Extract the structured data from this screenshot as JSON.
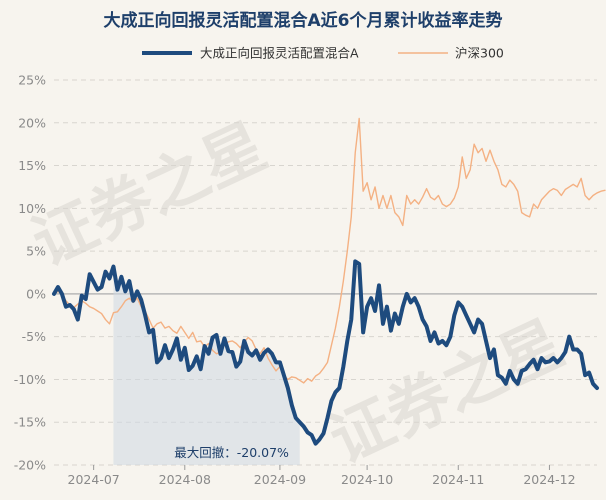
{
  "chart_data": {
    "type": "line",
    "title": "大成正向回报灵活配置混合A近6个月累计收益率走势",
    "xlabel": "",
    "ylabel": "",
    "ylim": [
      -20,
      25
    ],
    "yticks": [
      25,
      20,
      15,
      10,
      5,
      0,
      -5,
      -10,
      -15,
      -20
    ],
    "ytick_labels": [
      "25%",
      "20%",
      "15%",
      "10%",
      "5%",
      "0%",
      "-5%",
      "-10%",
      "-15%",
      "-20%"
    ],
    "xticks": [
      "2024-07",
      "2024-08",
      "2024-09",
      "2024-10",
      "2024-11",
      "2024-12"
    ],
    "grid": true,
    "legend_position": "top-center",
    "watermark": "证券之星",
    "annotation": {
      "label": "最大回撤：-20.07%",
      "start_index": 15,
      "end_index": 62
    },
    "series": [
      {
        "name": "大成正向回报灵活配置混合A",
        "color": "#1e4b7e",
        "values": [
          0,
          0.8,
          0,
          -1.5,
          -1.3,
          -1.8,
          -3,
          -0.2,
          -0.6,
          2.3,
          1.4,
          0.5,
          0.8,
          2.6,
          1.8,
          3.2,
          0.5,
          2,
          0.3,
          1.5,
          -0.8,
          0.3,
          -0.7,
          -2.5,
          -4.5,
          -4.2,
          -8,
          -7.5,
          -6,
          -7.5,
          -6.5,
          -5.2,
          -7.7,
          -6.3,
          -8.9,
          -8.4,
          -7.3,
          -8.8,
          -6.1,
          -7,
          -5.1,
          -4.8,
          -7,
          -5.2,
          -6.7,
          -6.8,
          -8.5,
          -7.9,
          -5.5,
          -6.8,
          -7.2,
          -6.6,
          -7.7,
          -6.9,
          -6.5,
          -7,
          -8,
          -8,
          -9.5,
          -11,
          -13,
          -14.5,
          -15,
          -15.5,
          -16.2,
          -16.5,
          -17.5,
          -17,
          -16.3,
          -14.5,
          -12.5,
          -11.5,
          -11,
          -8.5,
          -5.5,
          -3,
          3.8,
          3.5,
          -4.5,
          -1.5,
          -0.5,
          -2,
          1,
          -3.5,
          -1.5,
          -4.3,
          -2.3,
          -3.5,
          -1.5,
          0,
          -1,
          -0.5,
          -1.5,
          -3,
          -3.8,
          -5.5,
          -4.5,
          -5.8,
          -5.5,
          -6,
          -5,
          -2.5,
          -1,
          -1.5,
          -2.5,
          -3.5,
          -4.5,
          -3,
          -3.5,
          -5.5,
          -7.5,
          -6.5,
          -9.5,
          -9.8,
          -10.5,
          -9,
          -10,
          -10.5,
          -9,
          -8.8,
          -8.2,
          -7.7,
          -8.8,
          -7.5,
          -8,
          -7.9,
          -7.5,
          -8,
          -7.5,
          -6.8,
          -5,
          -6.5,
          -6.5,
          -7,
          -9.5,
          -9.2,
          -10.5,
          -11
        ]
      },
      {
        "name": "沪深300",
        "color": "#f4b183",
        "values": [
          0,
          0.3,
          0,
          -0.8,
          -1.3,
          -1.6,
          -1.2,
          -0.8,
          -1.1,
          -1.5,
          -1.7,
          -2,
          -2.3,
          -3,
          -3.5,
          -2.2,
          -2.1,
          -1.5,
          -0.8,
          -0.5,
          -1,
          -0.5,
          -1.5,
          -2,
          -3,
          -4,
          -3.5,
          -3.3,
          -4,
          -3.8,
          -4.3,
          -4.6,
          -3.8,
          -4.5,
          -5.2,
          -4.5,
          -5.6,
          -5.5,
          -6.2,
          -5.8,
          -6.6,
          -7,
          -6.8,
          -6,
          -5.6,
          -5.5,
          -5.8,
          -6.3,
          -5.6,
          -5.1,
          -5.5,
          -6.5,
          -7,
          -6.3,
          -7.5,
          -8.3,
          -9,
          -8.5,
          -9.5,
          -10,
          -9.7,
          -9.8,
          -10.1,
          -10.4,
          -9.9,
          -10.2,
          -9.6,
          -9.3,
          -8.7,
          -8,
          -6,
          -4,
          -1.5,
          1.5,
          5,
          9,
          16.5,
          20.5,
          12,
          13,
          11,
          12.5,
          10,
          11.5,
          10,
          11.5,
          9.5,
          9,
          8,
          11.5,
          10.5,
          11,
          10.5,
          11.3,
          12.3,
          11.3,
          11,
          11.5,
          10.5,
          10.2,
          10.5,
          11.2,
          12.5,
          16,
          13.5,
          14.5,
          17.5,
          16.5,
          17,
          15.5,
          16.8,
          15.5,
          14.5,
          12.8,
          12.5,
          13.3,
          12.8,
          12,
          9.5,
          9.2,
          9,
          10.5,
          10,
          11,
          11.5,
          12,
          12.3,
          12.1,
          11.5,
          12.2,
          12.5,
          12.8,
          12.5,
          13.5,
          11.5,
          11,
          11.5,
          11.8,
          12,
          12.1
        ]
      }
    ]
  }
}
